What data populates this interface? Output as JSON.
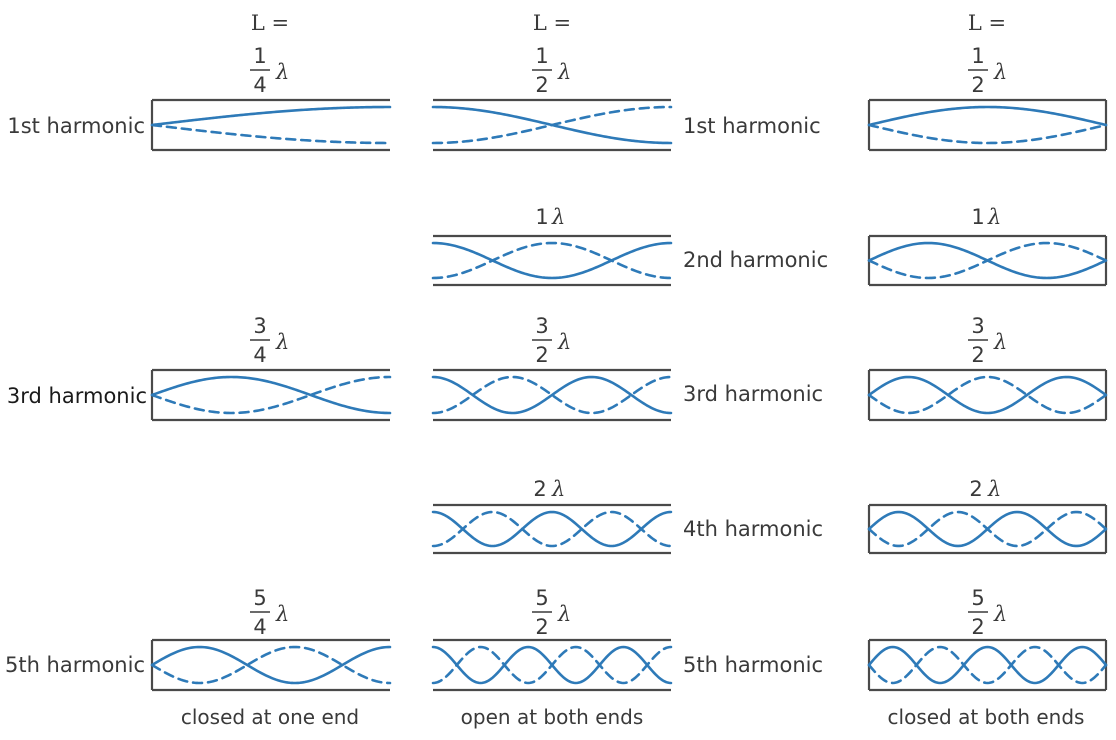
{
  "colors": {
    "wave": "#2e7ab8",
    "tube": "#4a4a4a",
    "text": "#3a3a3a"
  },
  "header_label": "L =",
  "lambda_symbol": "λ",
  "columns": [
    {
      "caption": "closed at one end",
      "rows": [
        {
          "harmonic": "1st harmonic",
          "num": "1",
          "den": "4"
        },
        {
          "harmonic": "3rd harmonic",
          "num": "3",
          "den": "4"
        },
        {
          "harmonic": "5th harmonic",
          "num": "5",
          "den": "4"
        }
      ]
    },
    {
      "caption": "open at both ends",
      "rows": [
        {
          "harmonic": "1st harmonic",
          "num": "1",
          "den": "2"
        },
        {
          "harmonic": "2nd harmonic",
          "whole": "1"
        },
        {
          "harmonic": "3rd harmonic",
          "num": "3",
          "den": "2"
        },
        {
          "harmonic": "4th harmonic",
          "whole": "2"
        },
        {
          "harmonic": "5th harmonic",
          "num": "5",
          "den": "2"
        }
      ]
    },
    {
      "caption": "closed at both ends",
      "rows": [
        {
          "num": "1",
          "den": "2"
        },
        {
          "whole": "1"
        },
        {
          "num": "3",
          "den": "2"
        },
        {
          "whole": "2"
        },
        {
          "num": "5",
          "den": "2"
        }
      ]
    }
  ]
}
